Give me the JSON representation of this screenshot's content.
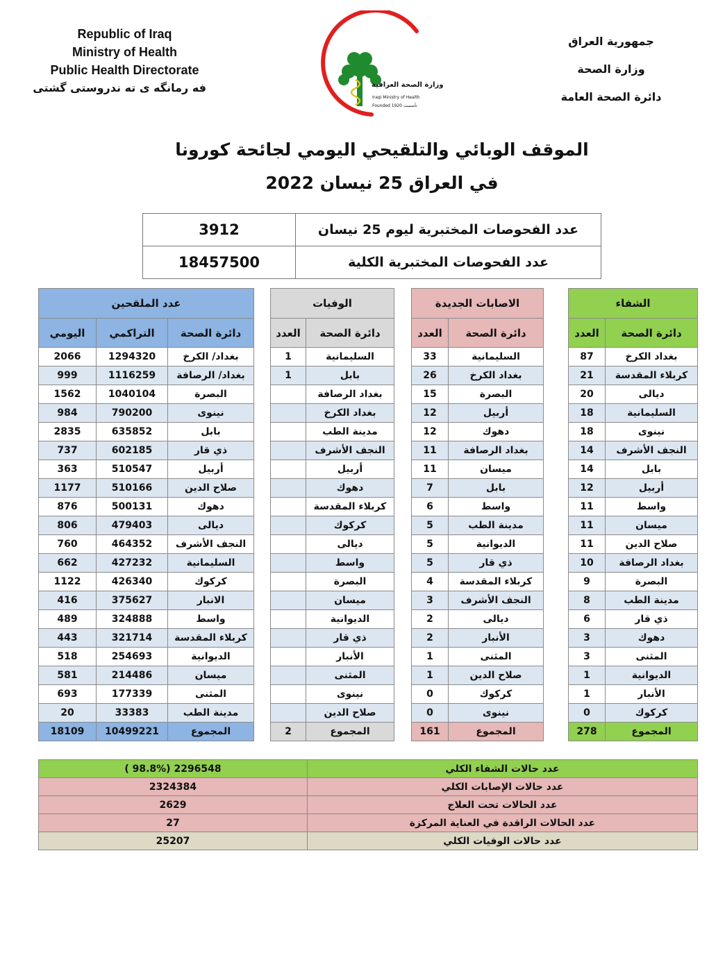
{
  "header": {
    "english_lines": [
      "Republic of Iraq",
      "Ministry of Health",
      "Public Health Directorate",
      "فه رمانگه ى ته ندروستى گشتى"
    ],
    "arabic_lines": [
      "جمهورية العراق",
      "وزارة الصحة",
      "دائرة الصحة العامة"
    ],
    "logo_text": {
      "ar": "وزارة الصحة العراقية",
      "en": "Iraqi Ministry of Health",
      "founded": "Founded 1920 تأسست"
    },
    "title_line1": "الموقف الوبائي والتلقيحي اليومي لجائحة كورونا",
    "title_line2": "في العراق  25 نيسان 2022"
  },
  "tests": [
    {
      "label": "عدد الفحوصات المختبرية  ليوم  25  نيسان",
      "value": "3912"
    },
    {
      "label": "عدد الفحوصات المختبرية الكلية",
      "value": "18457500"
    }
  ],
  "colors": {
    "recovery": "#92d050",
    "cases": "#e6b8b7",
    "deaths": "#d9d9d9",
    "vaccinated": "#8db4e2",
    "stripe": "#dce6f1",
    "deaths_total": "#ddd9c4"
  },
  "main": {
    "groups": {
      "vaccinated": "عدد الملقحين",
      "deaths": "الوفيات",
      "cases": "الاصابات الجديدة",
      "recovery": "الشفاء"
    },
    "cols": {
      "daily": "اليومي",
      "cumulative": "التراكمي",
      "directorate": "دائرة الصحة",
      "count": "العدد"
    },
    "rows": [
      {
        "v_daily": "2066",
        "v_cum": "1294320",
        "v_dir": "بغداد/ الكرخ",
        "d_count": "1",
        "d_dir": "السليمانية",
        "c_count": "33",
        "c_dir": "السليمانية",
        "r_count": "87",
        "r_dir": "بغداد الكرخ"
      },
      {
        "v_daily": "999",
        "v_cum": "1116259",
        "v_dir": "بغداد/ الرصافة",
        "d_count": "1",
        "d_dir": "بابل",
        "c_count": "26",
        "c_dir": "بغداد الكرخ",
        "r_count": "21",
        "r_dir": "كربلاء المقدسة"
      },
      {
        "v_daily": "1562",
        "v_cum": "1040104",
        "v_dir": "البصرة",
        "d_count": "",
        "d_dir": "بغداد الرصافة",
        "c_count": "15",
        "c_dir": "البصرة",
        "r_count": "20",
        "r_dir": "ديالى"
      },
      {
        "v_daily": "984",
        "v_cum": "790200",
        "v_dir": "نينوى",
        "d_count": "",
        "d_dir": "بغداد الكرخ",
        "c_count": "12",
        "c_dir": "أربيل",
        "r_count": "18",
        "r_dir": "السليمانية"
      },
      {
        "v_daily": "2835",
        "v_cum": "635852",
        "v_dir": "بابل",
        "d_count": "",
        "d_dir": "مدينة الطب",
        "c_count": "12",
        "c_dir": "دهوك",
        "r_count": "18",
        "r_dir": "نينوى"
      },
      {
        "v_daily": "737",
        "v_cum": "602185",
        "v_dir": "ذي قار",
        "d_count": "",
        "d_dir": "النجف الأشرف",
        "c_count": "11",
        "c_dir": "بغداد الرصافة",
        "r_count": "14",
        "r_dir": "النجف الأشرف"
      },
      {
        "v_daily": "363",
        "v_cum": "510547",
        "v_dir": "أربيل",
        "d_count": "",
        "d_dir": "أربيل",
        "c_count": "11",
        "c_dir": "ميسان",
        "r_count": "14",
        "r_dir": "بابل"
      },
      {
        "v_daily": "1177",
        "v_cum": "510166",
        "v_dir": "صلاح الدين",
        "d_count": "",
        "d_dir": "دهوك",
        "c_count": "7",
        "c_dir": "بابل",
        "r_count": "12",
        "r_dir": "أربيل"
      },
      {
        "v_daily": "876",
        "v_cum": "500131",
        "v_dir": "دهوك",
        "d_count": "",
        "d_dir": "كربلاء المقدسة",
        "c_count": "6",
        "c_dir": "واسط",
        "r_count": "11",
        "r_dir": "واسط"
      },
      {
        "v_daily": "806",
        "v_cum": "479403",
        "v_dir": "ديالى",
        "d_count": "",
        "d_dir": "كركوك",
        "c_count": "5",
        "c_dir": "مدينة الطب",
        "r_count": "11",
        "r_dir": "ميسان"
      },
      {
        "v_daily": "760",
        "v_cum": "464352",
        "v_dir": "النجف الأشرف",
        "d_count": "",
        "d_dir": "ديالى",
        "c_count": "5",
        "c_dir": "الديوانية",
        "r_count": "11",
        "r_dir": "صلاح الدين"
      },
      {
        "v_daily": "662",
        "v_cum": "427232",
        "v_dir": "السليمانية",
        "d_count": "",
        "d_dir": "واسط",
        "c_count": "5",
        "c_dir": "ذي قار",
        "r_count": "10",
        "r_dir": "بغداد الرصافة"
      },
      {
        "v_daily": "1122",
        "v_cum": "426340",
        "v_dir": "كركوك",
        "d_count": "",
        "d_dir": "البصرة",
        "c_count": "4",
        "c_dir": "كربلاء المقدسة",
        "r_count": "9",
        "r_dir": "البصرة"
      },
      {
        "v_daily": "416",
        "v_cum": "375627",
        "v_dir": "الانبار",
        "d_count": "",
        "d_dir": "ميسان",
        "c_count": "3",
        "c_dir": "النجف الأشرف",
        "r_count": "8",
        "r_dir": "مدينة الطب"
      },
      {
        "v_daily": "489",
        "v_cum": "324888",
        "v_dir": "واسط",
        "d_count": "",
        "d_dir": "الديوانية",
        "c_count": "2",
        "c_dir": "ديالى",
        "r_count": "6",
        "r_dir": "ذي قار"
      },
      {
        "v_daily": "443",
        "v_cum": "321714",
        "v_dir": "كربلاء المقدسة",
        "d_count": "",
        "d_dir": "ذي قار",
        "c_count": "2",
        "c_dir": "الأنبار",
        "r_count": "3",
        "r_dir": "دهوك"
      },
      {
        "v_daily": "518",
        "v_cum": "254693",
        "v_dir": "الديوانية",
        "d_count": "",
        "d_dir": "الأنبار",
        "c_count": "1",
        "c_dir": "المثنى",
        "r_count": "3",
        "r_dir": "المثنى"
      },
      {
        "v_daily": "581",
        "v_cum": "214486",
        "v_dir": "ميسان",
        "d_count": "",
        "d_dir": "المثنى",
        "c_count": "1",
        "c_dir": "صلاح الدين",
        "r_count": "1",
        "r_dir": "الديوانية"
      },
      {
        "v_daily": "693",
        "v_cum": "177339",
        "v_dir": "المثنى",
        "d_count": "",
        "d_dir": "نينوى",
        "c_count": "0",
        "c_dir": "كركوك",
        "r_count": "1",
        "r_dir": "الأنبار"
      },
      {
        "v_daily": "20",
        "v_cum": "33383",
        "v_dir": "مدينة الطب",
        "d_count": "",
        "d_dir": "صلاح الدين",
        "c_count": "0",
        "c_dir": "نينوى",
        "r_count": "0",
        "r_dir": "كركوك"
      }
    ],
    "totals": {
      "label": "المجموع",
      "v_daily": "18109",
      "v_cum": "10499221",
      "d_count": "2",
      "c_count": "161",
      "r_count": "278"
    }
  },
  "summary": [
    {
      "label": "عدد حالات الشفاء الكلي",
      "value": "( 98.8%)  2296548",
      "color": "#92d050"
    },
    {
      "label": "عدد حالات الإصابات الكلي",
      "value": "2324384",
      "color": "#e6b8b7"
    },
    {
      "label": "عدد الحالات تحت العلاج",
      "value": "2629",
      "color": "#e6b8b7"
    },
    {
      "label": "عدد الحالات الراقدة في العناية المركزة",
      "value": "27",
      "color": "#e6b8b7"
    },
    {
      "label": "عدد حالات الوفيات الكلي",
      "value": "25207",
      "color": "#ddd9c4"
    }
  ]
}
